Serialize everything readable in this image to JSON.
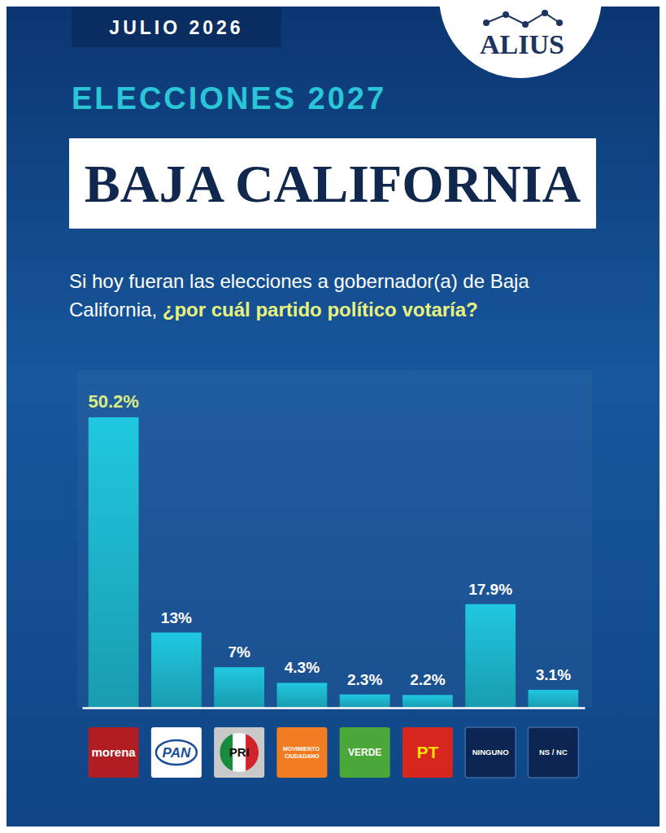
{
  "header": {
    "date": "JULIO 2026",
    "brand": "ALIUS",
    "kicker": "ELECCIONES 2027",
    "question": "Si hoy fueran las elecciones a gobernador(a) de Baja California,",
    "question_highlight": "¿por cuál partido político votaría?"
  },
  "chart_data": {
    "type": "bar",
    "title": "BAJA CALIFORNIA",
    "categories": [
      "morena",
      "PAN",
      "PRI",
      "MOVIMIENTO CIUDADANO",
      "VERDE",
      "PT",
      "NINGUNO",
      "NS / NC"
    ],
    "values": [
      50.2,
      13,
      7,
      4.3,
      2.3,
      2.2,
      17.9,
      3.1
    ],
    "value_labels": [
      "50.2%",
      "13%",
      "7%",
      "4.3%",
      "2.3%",
      "2.2%",
      "17.9%",
      "3.1%"
    ],
    "color": "#20c8e0",
    "data_labels": true,
    "tick_labels": "x",
    "grid": false
  }
}
